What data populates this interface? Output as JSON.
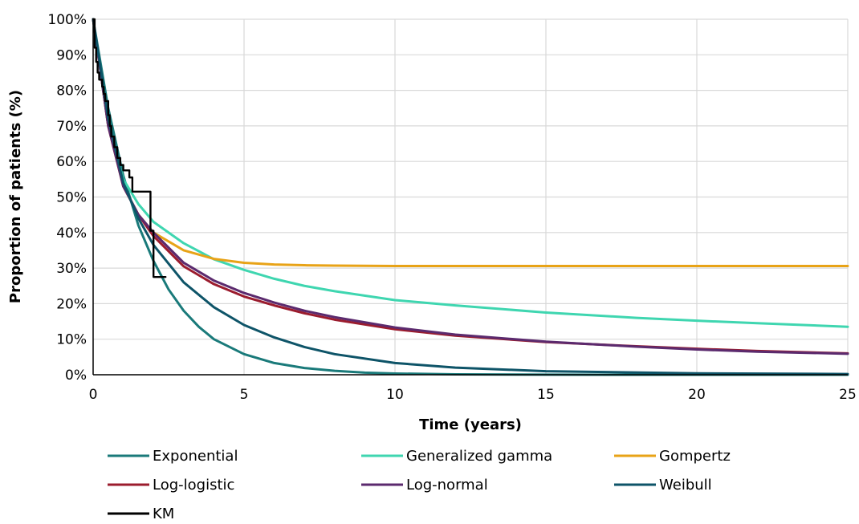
{
  "chart_data": {
    "type": "line",
    "title": "",
    "xlabel": "Time (years)",
    "ylabel": "Proportion of patients (%)",
    "xlim": [
      0,
      25
    ],
    "ylim": [
      0,
      100
    ],
    "x_ticks": [
      0,
      5,
      10,
      15,
      20,
      25
    ],
    "y_ticks": [
      0,
      10,
      20,
      30,
      40,
      50,
      60,
      70,
      80,
      90,
      100
    ],
    "y_tick_labels": [
      "0%",
      "10%",
      "20%",
      "30%",
      "40%",
      "50%",
      "60%",
      "70%",
      "80%",
      "90%",
      "100%"
    ],
    "grid": true,
    "legend_position": "bottom",
    "series": [
      {
        "name": "Exponential",
        "color": "#1a7a7a",
        "x": [
          0,
          0.5,
          1,
          1.5,
          2,
          2.5,
          3,
          3.5,
          4,
          5,
          6,
          7,
          8,
          9,
          10,
          12,
          15,
          20,
          25
        ],
        "y": [
          100,
          75,
          56,
          42,
          32,
          24,
          18,
          13.5,
          10,
          5.8,
          3.3,
          1.9,
          1.1,
          0.6,
          0.35,
          0.1,
          0.02,
          0,
          0
        ]
      },
      {
        "name": "Generalized gamma",
        "color": "#3fd6b0",
        "x": [
          0,
          0.5,
          1,
          1.5,
          2,
          3,
          4,
          5,
          6,
          7,
          8,
          10,
          12,
          15,
          18,
          20,
          22,
          25
        ],
        "y": [
          100,
          70,
          55,
          48,
          43,
          37,
          32.5,
          29.5,
          27,
          25,
          23.5,
          21,
          19.5,
          17.5,
          16,
          15.2,
          14.5,
          13.5
        ]
      },
      {
        "name": "Gompertz",
        "color": "#e8a317",
        "x": [
          0,
          0.5,
          1,
          1.5,
          2,
          3,
          4,
          5,
          6,
          7,
          8,
          10,
          15,
          20,
          25
        ],
        "y": [
          100,
          70,
          53,
          45,
          40,
          35,
          32.6,
          31.5,
          31,
          30.8,
          30.7,
          30.6,
          30.6,
          30.6,
          30.6
        ]
      },
      {
        "name": "Log-logistic",
        "color": "#9b1c2e",
        "x": [
          0,
          0.5,
          1,
          1.5,
          2,
          3,
          4,
          5,
          6,
          7,
          8,
          10,
          12,
          15,
          18,
          20,
          22,
          25
        ],
        "y": [
          100,
          70,
          53,
          45,
          39,
          30.5,
          25.5,
          22,
          19.5,
          17.3,
          15.5,
          12.8,
          11,
          9.2,
          8,
          7.3,
          6.7,
          6
        ]
      },
      {
        "name": "Log-normal",
        "color": "#5b2a6e",
        "x": [
          0,
          0.5,
          1,
          1.5,
          2,
          3,
          4,
          5,
          6,
          7,
          8,
          10,
          12,
          15,
          18,
          20,
          22,
          25
        ],
        "y": [
          100,
          70,
          53,
          45,
          40,
          31.5,
          26.5,
          23,
          20.3,
          18,
          16.2,
          13.3,
          11.3,
          9.3,
          7.9,
          7.1,
          6.5,
          5.9
        ]
      },
      {
        "name": "Weibull",
        "color": "#0e5468",
        "x": [
          0,
          0.5,
          1,
          1.5,
          2,
          3,
          4,
          5,
          6,
          7,
          8,
          10,
          12,
          15,
          20,
          25
        ],
        "y": [
          100,
          72,
          54,
          44,
          36.5,
          26,
          19,
          14,
          10.5,
          7.8,
          5.8,
          3.3,
          2,
          1,
          0.4,
          0.2
        ]
      },
      {
        "name": "KM",
        "color": "#000000",
        "step": true,
        "x": [
          0,
          0.05,
          0.1,
          0.15,
          0.2,
          0.3,
          0.35,
          0.4,
          0.5,
          0.55,
          0.6,
          0.7,
          0.8,
          0.9,
          1.0,
          1.2,
          1.3,
          1.9,
          2.0,
          2.4
        ],
        "y": [
          100,
          92,
          88,
          85,
          83,
          81,
          79,
          77,
          73,
          70,
          67,
          64,
          61,
          59,
          57.5,
          55.5,
          51.5,
          40.5,
          27.5,
          27.5
        ]
      }
    ]
  }
}
